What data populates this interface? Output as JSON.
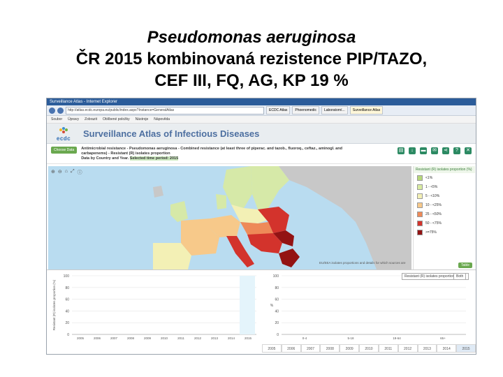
{
  "slide": {
    "title_line1": "Pseudomonas aeruginosa",
    "title_line2": "ČR 2015 kombinovaná rezistence PIP/TAZO,",
    "title_line3": "CEF III, FQ, AG, KP 19 %"
  },
  "browser": {
    "window_title": "Surveillance Atlas - Internet Explorer",
    "url": "http://atlas.ecdc.europa.eu/public/index.aspx?Instance=GeneralAtlas",
    "tabs": [
      "ECDC Atlas",
      "Phoenomedic",
      "Laboratorní...",
      "Surveillance Atlas"
    ],
    "menu": [
      "Soubor",
      "Úpravy",
      "Zobrazit",
      "Oblíbené položky",
      "Nástroje",
      "Nápověda"
    ]
  },
  "atlas": {
    "logo_text": "ecdc",
    "title": "Surveillance Atlas of Infectious Diseases",
    "choose_button": "Choose Data",
    "desc_line1": "Antimicrobial resistance - Pseudomonas aeruginosa - Combined resistance (at least three of piperac. and tazob., fluoroq., ceftaz., aminogl. and",
    "desc_line2": "carbapenems) - Resistant (R) isolates proportion",
    "desc_line3a": "Data by Country and Year.",
    "desc_line3b": "Selected time period: 2015",
    "map_note": "EU/EEA isolates proportions and details for which sources are",
    "table_button": "Table"
  },
  "legend": {
    "title": "Resistant (R) isolates proportion (%)",
    "items": [
      {
        "label": "<1%",
        "color": "#b6d77a"
      },
      {
        "label": "1 - <5%",
        "color": "#d8eba0"
      },
      {
        "label": "5 - <10%",
        "color": "#f3f0b5"
      },
      {
        "label": "10 - <25%",
        "color": "#f7c98a"
      },
      {
        "label": "25 - <50%",
        "color": "#ee8a58"
      },
      {
        "label": "50 - <75%",
        "color": "#d3332c"
      },
      {
        "label": ">=75%",
        "color": "#931313"
      }
    ]
  },
  "charts": {
    "selector_label": "Resistant (R) isolates proportion by age",
    "selector_sex": "Both",
    "left_ylabel": "Resistant (R) isolates proportion (%)",
    "right_ylabel": "%"
  },
  "slider_years": [
    "2005",
    "2006",
    "2007",
    "2008",
    "2009",
    "2010",
    "2011",
    "2012",
    "2013",
    "2014",
    "2015"
  ],
  "chart_data": [
    {
      "type": "line",
      "title": "",
      "ylabel": "Resistant (R) isolates proportion (%)",
      "x": [
        "2005",
        "2006",
        "2007",
        "2008",
        "2009",
        "2010",
        "2011",
        "2012",
        "2013",
        "2014",
        "2015"
      ],
      "ylim": [
        0,
        100
      ],
      "yticks": [
        0,
        20,
        40,
        60,
        80,
        100
      ],
      "series": []
    },
    {
      "type": "bar",
      "title": "",
      "ylabel": "%",
      "categories": [
        "0-4",
        "5-18",
        "19-64",
        "65+"
      ],
      "ylim": [
        0,
        100
      ],
      "yticks": [
        0,
        20,
        40,
        60,
        80,
        100
      ],
      "series": []
    }
  ]
}
